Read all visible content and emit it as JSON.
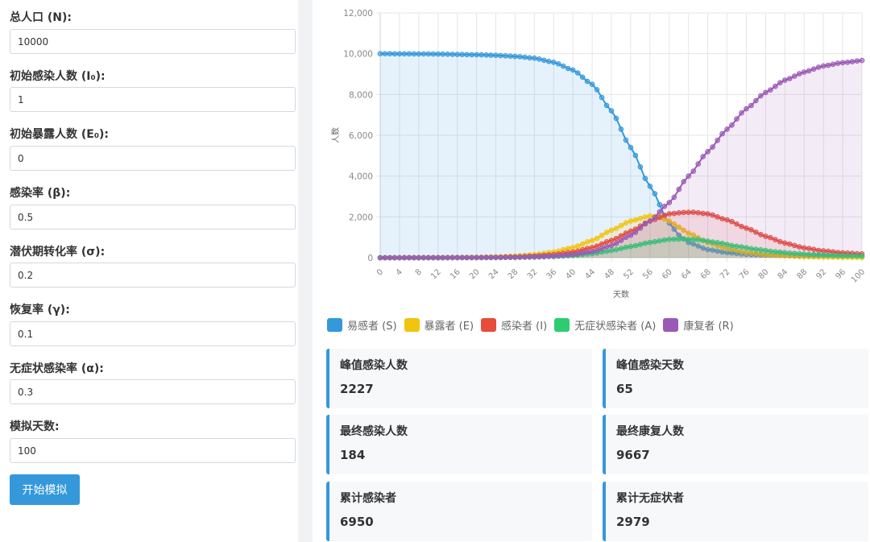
{
  "form": {
    "fields": [
      {
        "label": "总人口 (N):",
        "value": "10000"
      },
      {
        "label": "初始感染人数 (I₀):",
        "value": "1"
      },
      {
        "label": "初始暴露人数 (E₀):",
        "value": "0"
      },
      {
        "label": "感染率 (β):",
        "value": "0.5"
      },
      {
        "label": "潜伏期转化率 (σ):",
        "value": "0.2"
      },
      {
        "label": "恢复率 (γ):",
        "value": "0.1"
      },
      {
        "label": "无症状感染率 (α):",
        "value": "0.3"
      },
      {
        "label": "模拟天数:",
        "value": "100"
      }
    ],
    "start_button": "开始模拟"
  },
  "chart_data": {
    "type": "line",
    "xlabel": "天数",
    "ylabel": "人数",
    "xlim": [
      0,
      100
    ],
    "ylim": [
      0,
      12000
    ],
    "x_ticks": [
      0,
      4,
      8,
      12,
      16,
      20,
      24,
      28,
      32,
      36,
      40,
      44,
      48,
      52,
      56,
      60,
      64,
      68,
      72,
      76,
      80,
      84,
      88,
      92,
      96,
      100
    ],
    "y_ticks": [
      "0",
      "2,000",
      "4,000",
      "6,000",
      "8,000",
      "10,000",
      "12,000"
    ],
    "grid": true,
    "legend_position": "bottom",
    "series": [
      {
        "name": "易感者 (S)",
        "color": "#3498db",
        "x": [
          0,
          10,
          20,
          24,
          28,
          32,
          36,
          40,
          44,
          48,
          52,
          56,
          60,
          62,
          64,
          68,
          72,
          76,
          80,
          84,
          88,
          92,
          96,
          100
        ],
        "y": [
          9999,
          9990,
          9950,
          9920,
          9870,
          9780,
          9580,
          9200,
          8500,
          7200,
          5400,
          3500,
          1700,
          1100,
          750,
          400,
          250,
          170,
          130,
          110,
          100,
          95,
          92,
          90
        ]
      },
      {
        "name": "暴露者 (E)",
        "color": "#f1c40f",
        "x": [
          0,
          10,
          20,
          24,
          28,
          32,
          36,
          40,
          44,
          48,
          52,
          56,
          58,
          60,
          62,
          64,
          68,
          72,
          76,
          80,
          84,
          88,
          92,
          96,
          100
        ],
        "y": [
          0,
          5,
          20,
          40,
          80,
          150,
          280,
          500,
          850,
          1350,
          1800,
          2050,
          2000,
          1800,
          1500,
          1200,
          750,
          450,
          260,
          150,
          90,
          50,
          30,
          20,
          10
        ]
      },
      {
        "name": "感染者 (I)",
        "color": "#e74c3c",
        "x": [
          0,
          10,
          20,
          24,
          28,
          32,
          36,
          40,
          44,
          48,
          52,
          56,
          60,
          63,
          65,
          68,
          72,
          76,
          80,
          84,
          88,
          92,
          96,
          100
        ],
        "y": [
          1,
          3,
          10,
          20,
          40,
          80,
          150,
          280,
          500,
          850,
          1300,
          1800,
          2150,
          2220,
          2227,
          2150,
          1850,
          1450,
          1050,
          720,
          480,
          330,
          240,
          184
        ]
      },
      {
        "name": "无症状感染者 (A)",
        "color": "#2ecc71",
        "x": [
          0,
          10,
          20,
          24,
          28,
          32,
          36,
          40,
          44,
          48,
          52,
          56,
          60,
          63,
          66,
          70,
          74,
          78,
          82,
          86,
          90,
          94,
          98,
          100
        ],
        "y": [
          0,
          1,
          4,
          8,
          15,
          30,
          60,
          110,
          200,
          350,
          550,
          750,
          900,
          920,
          880,
          740,
          560,
          410,
          290,
          210,
          150,
          110,
          90,
          80
        ]
      },
      {
        "name": "康复者 (R)",
        "color": "#9b59b6",
        "x": [
          0,
          10,
          20,
          24,
          28,
          32,
          36,
          40,
          44,
          48,
          52,
          56,
          60,
          64,
          68,
          72,
          76,
          80,
          84,
          88,
          92,
          96,
          100
        ],
        "y": [
          0,
          0,
          5,
          10,
          20,
          40,
          80,
          150,
          300,
          600,
          1100,
          1800,
          2700,
          4000,
          5200,
          6300,
          7300,
          8100,
          8700,
          9100,
          9400,
          9560,
          9667
        ]
      }
    ]
  },
  "stats": [
    {
      "label": "峰值感染人数",
      "value": "2227"
    },
    {
      "label": "峰值感染天数",
      "value": "65"
    },
    {
      "label": "最终感染人数",
      "value": "184"
    },
    {
      "label": "最终康复人数",
      "value": "9667"
    },
    {
      "label": "累计感染者",
      "value": "6950"
    },
    {
      "label": "累计无症状者",
      "value": "2979"
    }
  ]
}
